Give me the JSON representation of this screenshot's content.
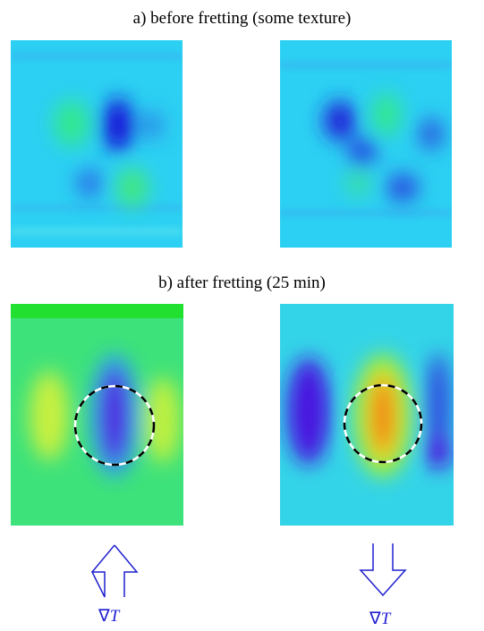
{
  "panels": [
    {
      "caption": "a)  before fretting (some texture)"
    },
    {
      "caption": "b)  after fretting (25 min)"
    }
  ],
  "gradient_labels": [
    {
      "symbol": "∇",
      "variable": "T"
    },
    {
      "symbol": "∇",
      "variable": "T"
    }
  ]
}
